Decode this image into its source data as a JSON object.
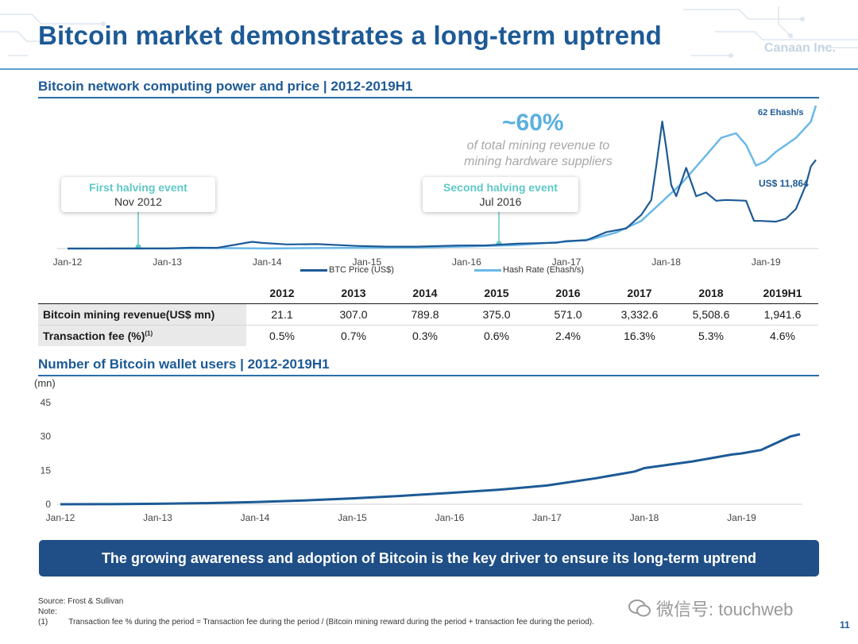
{
  "slide": {
    "title": "Bitcoin market demonstrates a long-term uptrend",
    "logo": "Canaan Inc.",
    "page_number": "11",
    "watermark": "微信号: touchweb",
    "banner": "The growing awareness and adoption of Bitcoin is the key driver to ensure its long-term uptrend",
    "source": "Source: Frost & Sullivan",
    "note_label": "Note:",
    "footnote_marker": "(1)",
    "footnote_text": "Transaction fee % during the period = Transaction fee during the period / (Bitcoin mining reward during the period + transaction fee during the period)."
  },
  "section1": {
    "title": "Bitcoin network computing power and price | 2012-2019H1",
    "share_pct": "~60%",
    "share_desc_line1": "of total mining revenue to",
    "share_desc_line2": "mining hardware suppliers",
    "halving1": {
      "title": "First halving event",
      "date": "Nov 2012"
    },
    "halving2": {
      "title": "Second halving event",
      "date": "Jul 2016"
    },
    "hash_end_label": "62 Ehash/s",
    "btc_end_label": "US$ 11,864"
  },
  "table": {
    "years": [
      "2012",
      "2013",
      "2014",
      "2015",
      "2016",
      "2017",
      "2018",
      "2019H1"
    ],
    "rows": [
      {
        "label": "Bitcoin mining revenue(US$ mn)",
        "values": [
          "21.1",
          "307.0",
          "789.8",
          "375.0",
          "571.0",
          "3,332.6",
          "5,508.6",
          "1,941.6"
        ]
      },
      {
        "label": "Transaction fee (%)",
        "sup": "(1)",
        "values": [
          "0.5%",
          "0.7%",
          "0.3%",
          "0.6%",
          "2.4%",
          "16.3%",
          "5.3%",
          "4.6%"
        ]
      }
    ]
  },
  "section2": {
    "title": "Number of Bitcoin wallet users | 2012-2019H1",
    "unit": "(mn)"
  },
  "chart_data": [
    {
      "type": "line",
      "x_ticks": [
        "Jan-12",
        "Jan-13",
        "Jan-14",
        "Jan-15",
        "Jan-16",
        "Jan-17",
        "Jan-18",
        "Jan-19"
      ],
      "y_axis_visible": false,
      "legend_position": "bottom",
      "series": [
        {
          "name": "BTC Price (US$)",
          "axis": "left",
          "color": "#1d5a96",
          "x": [
            2012.0,
            2012.5,
            2013.0,
            2013.25,
            2013.5,
            2013.85,
            2013.95,
            2014.2,
            2014.5,
            2014.9,
            2015.2,
            2015.5,
            2015.9,
            2016.2,
            2016.5,
            2016.9,
            2017.0,
            2017.2,
            2017.4,
            2017.6,
            2017.75,
            2017.85,
            2017.9,
            2017.96,
            2018.0,
            2018.05,
            2018.1,
            2018.2,
            2018.3,
            2018.4,
            2018.5,
            2018.6,
            2018.8,
            2018.88,
            2018.95,
            2019.1,
            2019.2,
            2019.3,
            2019.4,
            2019.45,
            2019.5
          ],
          "y": [
            5,
            7,
            14,
            130,
            100,
            900,
            750,
            550,
            600,
            350,
            250,
            260,
            400,
            420,
            650,
            780,
            1000,
            1100,
            2200,
            2700,
            4500,
            6500,
            11000,
            17000,
            13500,
            8500,
            7000,
            10800,
            7000,
            7500,
            6400,
            6500,
            6400,
            3700,
            3700,
            3600,
            4000,
            5300,
            8500,
            11000,
            11864
          ]
        },
        {
          "name": "Hash Rate (Ehash/s)",
          "axis": "right",
          "color": "#6bb8e8",
          "x": [
            2012.0,
            2013.0,
            2013.5,
            2014.0,
            2014.5,
            2015.0,
            2015.5,
            2016.0,
            2016.5,
            2017.0,
            2017.25,
            2017.5,
            2017.75,
            2018.0,
            2018.15,
            2018.35,
            2018.55,
            2018.7,
            2018.8,
            2018.9,
            2019.0,
            2019.1,
            2019.3,
            2019.45,
            2019.5
          ],
          "y": [
            0,
            0.02,
            0.2,
            0.02,
            0.2,
            0.3,
            0.45,
            0.9,
            1.5,
            3,
            4,
            7,
            12,
            22,
            28,
            38,
            48,
            50,
            45,
            36,
            38,
            42,
            48,
            55,
            62
          ]
        }
      ]
    },
    {
      "type": "line",
      "ylabel": "(mn)",
      "ylim": [
        0,
        45
      ],
      "y_ticks": [
        0,
        15,
        30,
        45
      ],
      "x_ticks": [
        "Jan-12",
        "Jan-13",
        "Jan-14",
        "Jan-15",
        "Jan-16",
        "Jan-17",
        "Jan-18",
        "Jan-19"
      ],
      "series": [
        {
          "name": "",
          "color": "#1d5a96",
          "x": [
            2012.0,
            2012.5,
            2013.0,
            2013.5,
            2014.0,
            2014.5,
            2015.0,
            2015.5,
            2016.0,
            2016.5,
            2017.0,
            2017.5,
            2017.9,
            2018.0,
            2018.5,
            2018.9,
            2019.0,
            2019.2,
            2019.3,
            2019.5,
            2019.6
          ],
          "y": [
            0,
            0.05,
            0.2,
            0.5,
            1,
            1.7,
            2.6,
            3.7,
            5,
            6.4,
            8.3,
            11.5,
            14.5,
            16,
            19,
            22,
            22.5,
            24,
            26,
            30,
            31
          ]
        }
      ]
    }
  ]
}
